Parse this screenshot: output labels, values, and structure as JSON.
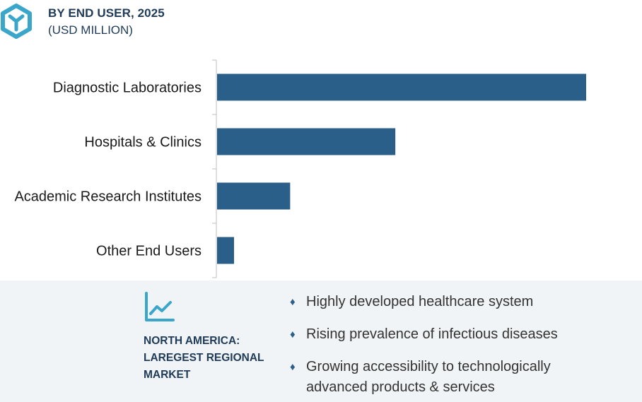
{
  "header": {
    "title": "BY END USER, 2025",
    "subtitle": "(USD MILLION)",
    "logo_icon": "cube-y-logo-icon"
  },
  "colors": {
    "bar": "#2a5f8a",
    "title": "#1f3b57",
    "panel_bg": "#f1f4f6",
    "logo": "#3aa6c9"
  },
  "chart_data": {
    "type": "bar",
    "orientation": "horizontal",
    "title": "BY END USER, 2025",
    "subtitle": "(USD MILLION)",
    "xlabel": "",
    "ylabel": "",
    "categories": [
      "Diagnostic Laboratories",
      "Hospitals & Clinics",
      "Academic Research Institutes",
      "Other End Users"
    ],
    "values": [
      100,
      48.3,
      19.8,
      4.6
    ],
    "xlim": [
      0,
      100
    ],
    "grid": false,
    "legend": "none"
  },
  "panel": {
    "icon": "trend-chart-icon",
    "region_lines": [
      "NORTH AMERICA:",
      "LAREGEST REGIONAL",
      "MARKET"
    ],
    "bullets": [
      "Highly developed  healthcare system",
      "Rising prevalence of infectious diseases",
      "Growing accessibility to technologically advanced products & services"
    ]
  }
}
